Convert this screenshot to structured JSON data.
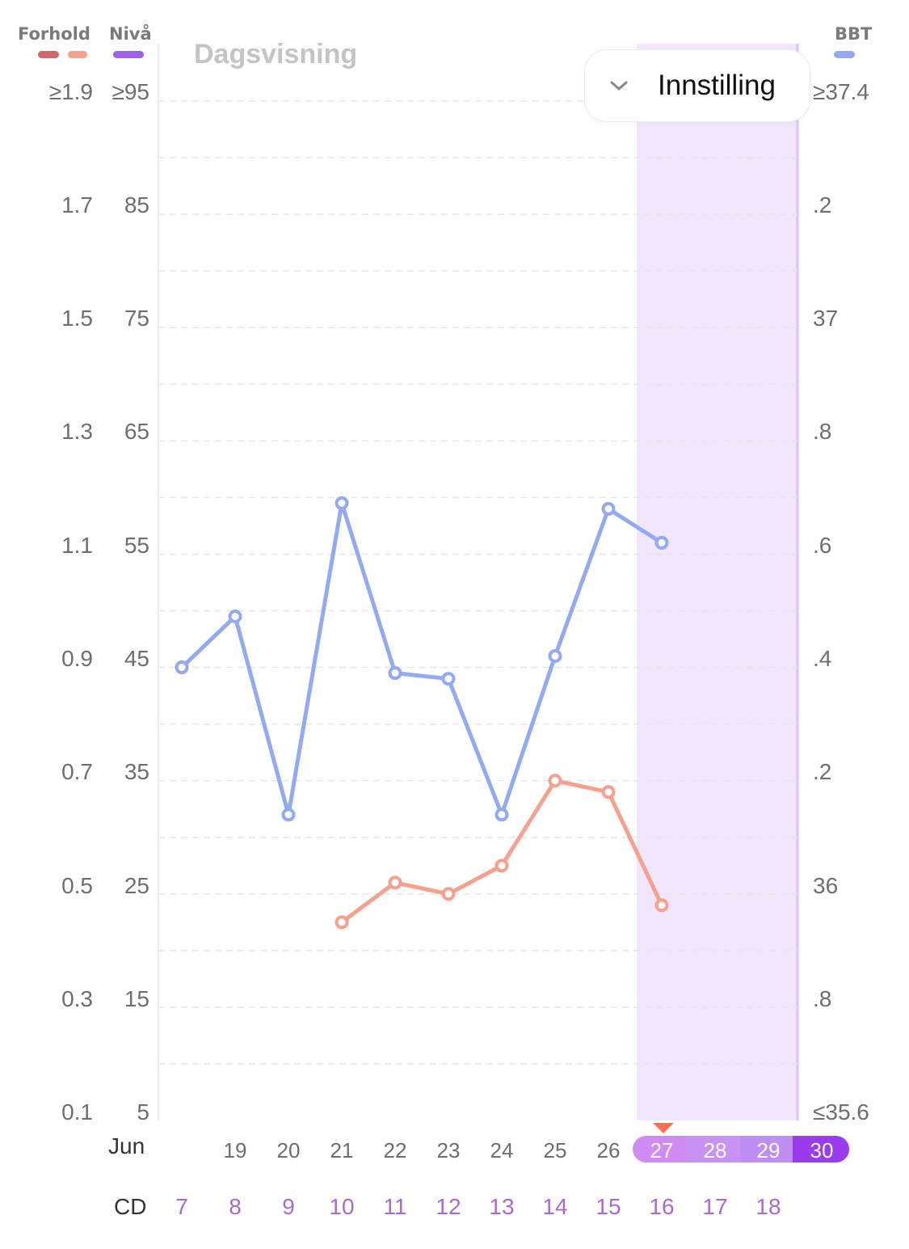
{
  "legend": {
    "ratio_label": "Forhold",
    "level_label": "Nivå",
    "bbt_label": "BBT",
    "ratio_colors": [
      "#d4656b",
      "#f7a08e"
    ],
    "level_color": "#9f5fe8",
    "bbt_color": "#93aaf2"
  },
  "view_label": "Dagsvisning",
  "settings_button": {
    "label": "Innstilling",
    "icon": "chevron-down-icon"
  },
  "axes": {
    "ratio_ticks": [
      "≥1.9",
      "1.7",
      "1.5",
      "1.3",
      "1.1",
      "0.9",
      "0.7",
      "0.5",
      "0.3",
      "0.1"
    ],
    "level_ticks": [
      "≥95",
      "85",
      "75",
      "65",
      "55",
      "45",
      "35",
      "25",
      "15",
      "5"
    ],
    "bbt_ticks": [
      "≥37.4",
      ".2",
      "37",
      ".8",
      ".6",
      ".4",
      ".2",
      "36",
      ".8",
      "≤35.6"
    ]
  },
  "x_axis": {
    "month_label": "Jun",
    "dates": [
      "",
      "19",
      "20",
      "21",
      "22",
      "23",
      "24",
      "25",
      "26",
      "27",
      "28",
      "29",
      "30"
    ],
    "cd_label": "CD",
    "cycle_days": [
      "7",
      "8",
      "9",
      "10",
      "11",
      "12",
      "13",
      "14",
      "15",
      "16",
      "17",
      "18"
    ]
  },
  "chart_data": {
    "type": "line",
    "x": [
      "18",
      "19",
      "20",
      "21",
      "22",
      "23",
      "24",
      "25",
      "26",
      "27"
    ],
    "ylim_level": [
      5,
      95
    ],
    "ylim_ratio": [
      0.1,
      1.9
    ],
    "ylim_bbt": [
      35.6,
      37.4
    ],
    "grid": true,
    "highlight_days": [
      "27",
      "28",
      "29",
      "30"
    ],
    "highlight_color": "#f1e6fd",
    "series": [
      {
        "name": "BBT",
        "color": "#93aaf2",
        "values": [
          36.4,
          36.49,
          36.14,
          36.69,
          36.39,
          36.38,
          36.14,
          36.42,
          36.68,
          36.62
        ]
      },
      {
        "name": "Forhold",
        "color": "#f7a08e",
        "values": [
          null,
          null,
          null,
          0.45,
          0.52,
          0.5,
          0.55,
          0.7,
          0.68,
          0.48
        ]
      }
    ]
  }
}
